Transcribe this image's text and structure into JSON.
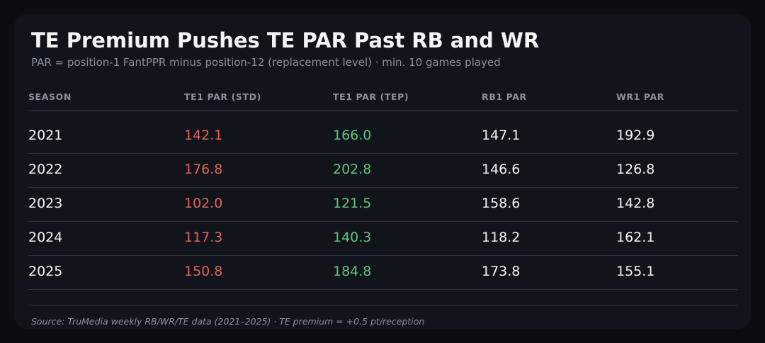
{
  "header": {
    "title": "TE Premium Pushes TE PAR Past RB and WR",
    "subtitle": "PAR = position-1 FantPPR minus position-12 (replacement level) · min. 10 games played"
  },
  "footer": {
    "source": "Source: TruMedia weekly RB/WR/TE data (2021–2025) · TE premium = +0.5 pt/reception"
  },
  "colors": {
    "background": "#0b0d12",
    "card": "#11141b",
    "std": "#e0645c",
    "tep": "#5fc47e",
    "text": "#f3f5f8",
    "muted": "#8a919e"
  },
  "chart_data": {
    "type": "table",
    "title": "TE Premium Pushes TE PAR Past RB and WR",
    "subtitle": "PAR = position-1 FantPPR minus position-12 (replacement level) · min. 10 games played",
    "columns": [
      "SEASON",
      "TE1 PAR (STD)",
      "TE1 PAR (TEP)",
      "RB1 PAR",
      "WR1 PAR"
    ],
    "rows": [
      [
        "2021",
        "142.1",
        "166.0",
        "147.1",
        "192.9"
      ],
      [
        "2022",
        "176.8",
        "202.8",
        "146.6",
        "126.8"
      ],
      [
        "2023",
        "102.0",
        "121.5",
        "158.6",
        "142.8"
      ],
      [
        "2024",
        "117.3",
        "140.3",
        "118.2",
        "162.1"
      ],
      [
        "2025",
        "150.8",
        "184.8",
        "173.8",
        "155.1"
      ]
    ]
  }
}
